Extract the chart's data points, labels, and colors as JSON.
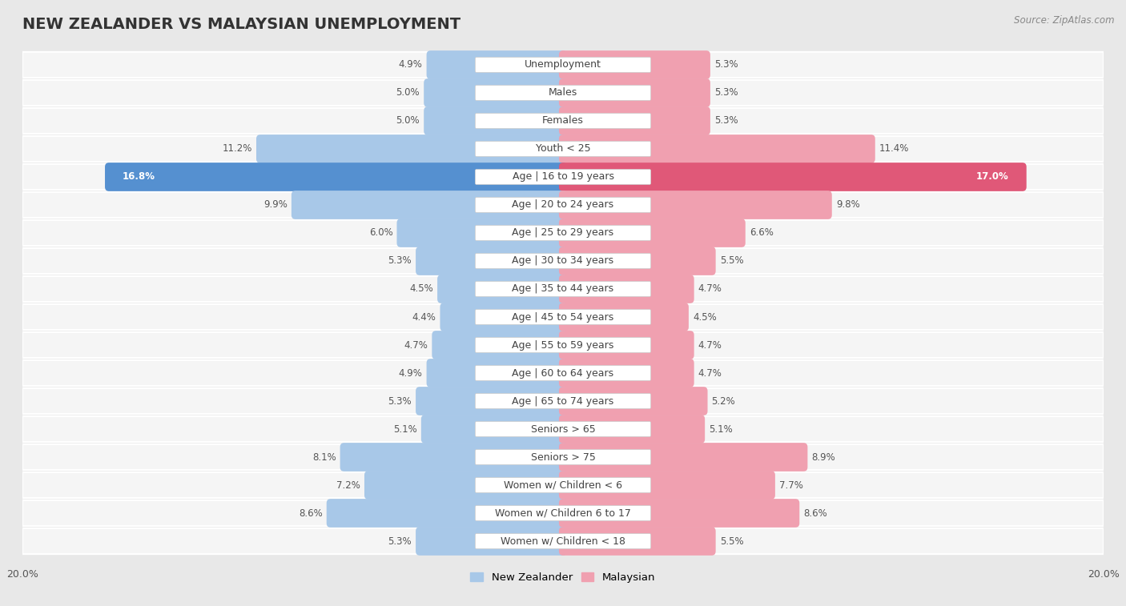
{
  "title": "NEW ZEALANDER VS MALAYSIAN UNEMPLOYMENT",
  "source": "Source: ZipAtlas.com",
  "categories": [
    "Unemployment",
    "Males",
    "Females",
    "Youth < 25",
    "Age | 16 to 19 years",
    "Age | 20 to 24 years",
    "Age | 25 to 29 years",
    "Age | 30 to 34 years",
    "Age | 35 to 44 years",
    "Age | 45 to 54 years",
    "Age | 55 to 59 years",
    "Age | 60 to 64 years",
    "Age | 65 to 74 years",
    "Seniors > 65",
    "Seniors > 75",
    "Women w/ Children < 6",
    "Women w/ Children 6 to 17",
    "Women w/ Children < 18"
  ],
  "nz_values": [
    4.9,
    5.0,
    5.0,
    11.2,
    16.8,
    9.9,
    6.0,
    5.3,
    4.5,
    4.4,
    4.7,
    4.9,
    5.3,
    5.1,
    8.1,
    7.2,
    8.6,
    5.3
  ],
  "my_values": [
    5.3,
    5.3,
    5.3,
    11.4,
    17.0,
    9.8,
    6.6,
    5.5,
    4.7,
    4.5,
    4.7,
    4.7,
    5.2,
    5.1,
    8.9,
    7.7,
    8.6,
    5.5
  ],
  "nz_color": "#a8c8e8",
  "my_color": "#f0a0b0",
  "nz_highlight_color": "#5590d0",
  "my_highlight_color": "#e05878",
  "highlight_row": 4,
  "xlim": 20.0,
  "bg_color": "#e8e8e8",
  "row_bg_light": "#f5f5f5",
  "row_separator": "#ffffff",
  "legend_nz": "New Zealander",
  "legend_my": "Malaysian",
  "title_fontsize": 14,
  "label_fontsize": 9,
  "value_fontsize": 8.5
}
